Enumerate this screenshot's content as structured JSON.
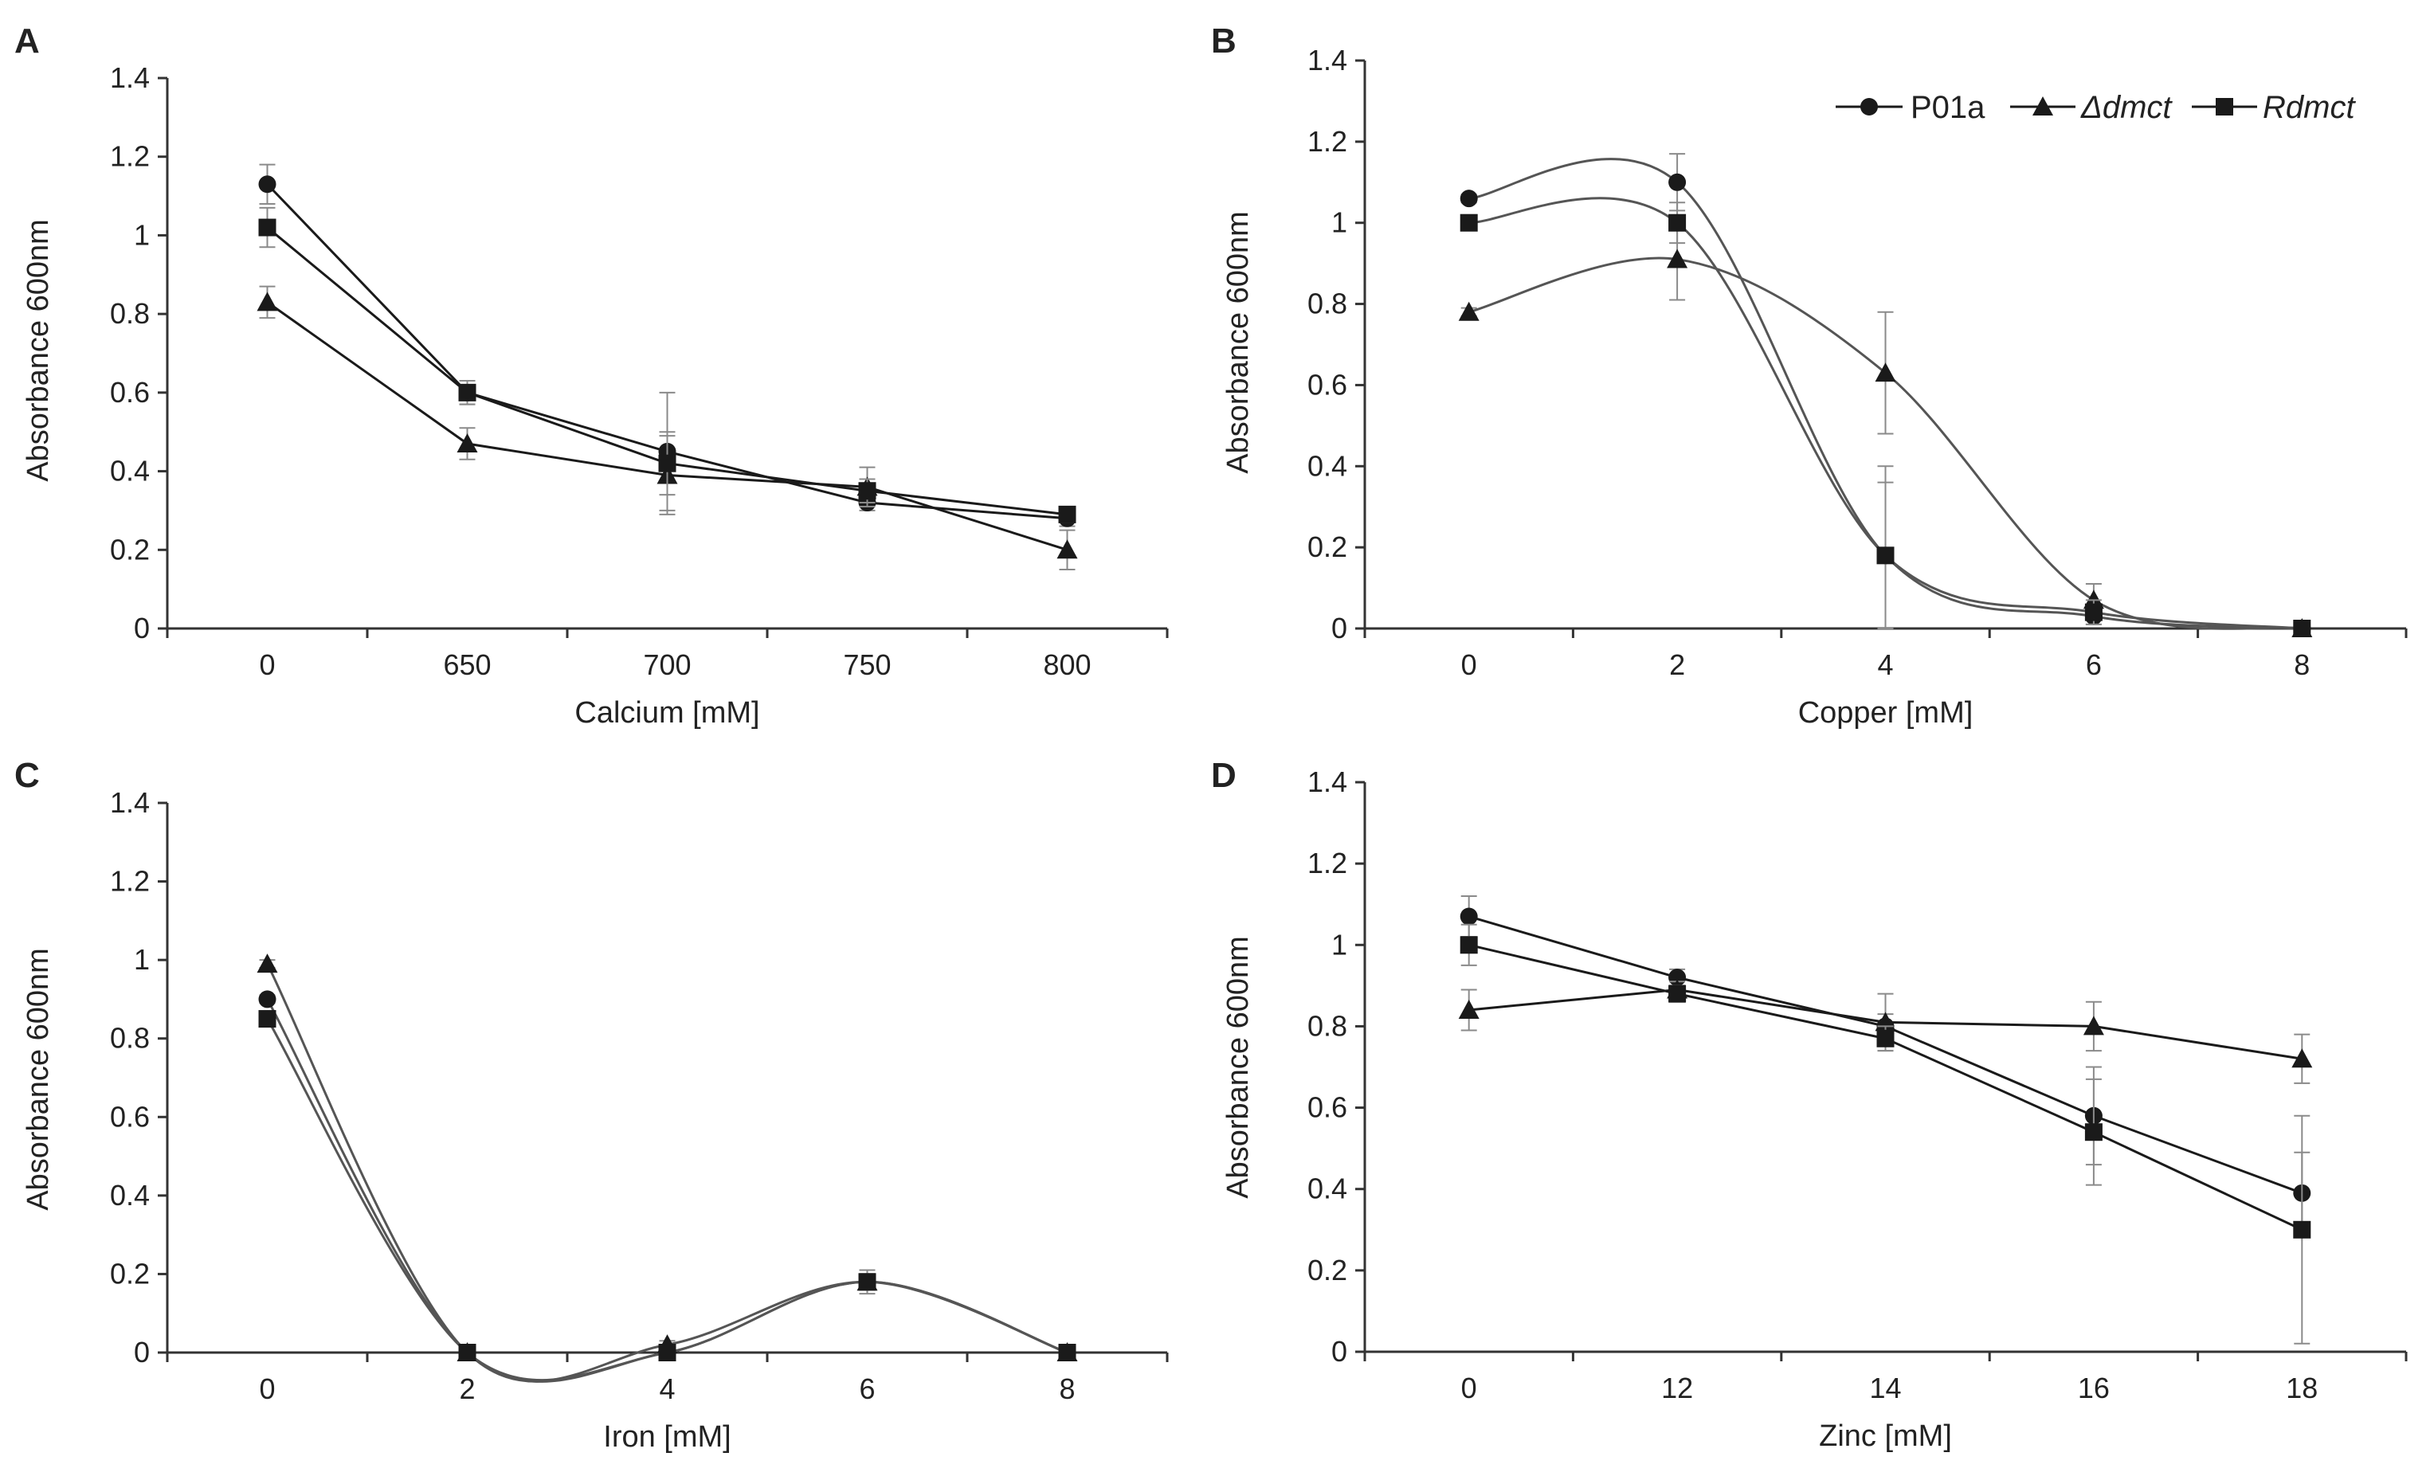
{
  "colors": {
    "line": "#1a1a1a",
    "smooth": "#555555",
    "axis": "#333333",
    "error": "#8a8a8a",
    "text": "#222222"
  },
  "legend": {
    "placement": "top-right",
    "entries": [
      {
        "label": "P01a",
        "marker": "circle",
        "italic": false
      },
      {
        "label": "Δdmct",
        "marker": "triangle",
        "italic": true
      },
      {
        "label": "Rdmct",
        "marker": "square",
        "italic": true
      }
    ]
  },
  "chart_data": [
    {
      "panel": "A",
      "type": "line",
      "smooth": false,
      "categories": [
        "0",
        "650",
        "700",
        "750",
        "800"
      ],
      "xlabel": "Calcium [mM]",
      "ylabel": "Absorbance 600nm",
      "ylim": [
        0,
        1.4
      ],
      "yticks": [
        "0",
        "0.2",
        "0.4",
        "0.6",
        "0.8",
        "1",
        "1.2",
        "1.4"
      ],
      "series": [
        {
          "name": "P01a",
          "marker": "circle",
          "values": [
            1.13,
            0.6,
            0.45,
            0.32,
            0.28
          ],
          "errors": [
            0.05,
            0.03,
            0.15,
            0.02,
            0.02
          ]
        },
        {
          "name": "Δdmct",
          "marker": "triangle",
          "values": [
            0.83,
            0.47,
            0.39,
            0.36,
            0.2
          ],
          "errors": [
            0.04,
            0.04,
            0.1,
            0.05,
            0.05
          ]
        },
        {
          "name": "Rdmct",
          "marker": "square",
          "values": [
            1.02,
            0.6,
            0.42,
            0.35,
            0.29
          ],
          "errors": [
            0.05,
            0.03,
            0.08,
            0.03,
            0.02
          ]
        }
      ]
    },
    {
      "panel": "B",
      "type": "line",
      "smooth": true,
      "categories": [
        "0",
        "2",
        "4",
        "6",
        "8"
      ],
      "xlabel": "Copper [mM]",
      "ylabel": "Absorbance 600nm",
      "ylim": [
        0,
        1.4
      ],
      "yticks": [
        "0",
        "0.2",
        "0.4",
        "0.6",
        "0.8",
        "1",
        "1.2",
        "1.4"
      ],
      "series": [
        {
          "name": "P01a",
          "marker": "circle",
          "values": [
            1.06,
            1.1,
            0.18,
            0.03,
            0.0
          ],
          "errors": [
            0.01,
            0.07,
            0.22,
            0.02,
            0.0
          ]
        },
        {
          "name": "Δdmct",
          "marker": "triangle",
          "values": [
            0.78,
            0.91,
            0.63,
            0.07,
            0.0
          ],
          "errors": [
            0.01,
            0.1,
            0.15,
            0.04,
            0.0
          ]
        },
        {
          "name": "Rdmct",
          "marker": "square",
          "values": [
            1.0,
            1.0,
            0.18,
            0.04,
            0.0
          ],
          "errors": [
            0.01,
            0.05,
            0.18,
            0.03,
            0.0
          ]
        }
      ]
    },
    {
      "panel": "C",
      "type": "line",
      "smooth": true,
      "categories": [
        "0",
        "2",
        "4",
        "6",
        "8"
      ],
      "xlabel": "Iron [mM]",
      "ylabel": "Absorbance 600nm",
      "ylim": [
        0,
        1.4
      ],
      "yticks": [
        "0",
        "0.2",
        "0.4",
        "0.6",
        "0.8",
        "1",
        "1.2",
        "1.4"
      ],
      "series": [
        {
          "name": "P01a",
          "marker": "circle",
          "values": [
            0.9,
            0.0,
            0.0,
            0.18,
            0.0
          ],
          "errors": [
            0.01,
            0.01,
            0.0,
            0.02,
            0.0
          ]
        },
        {
          "name": "Δdmct",
          "marker": "triangle",
          "values": [
            0.99,
            0.0,
            0.02,
            0.18,
            0.0
          ],
          "errors": [
            0.01,
            0.01,
            0.01,
            0.02,
            0.0
          ]
        },
        {
          "name": "Rdmct",
          "marker": "square",
          "values": [
            0.85,
            0.0,
            0.0,
            0.18,
            0.0
          ],
          "errors": [
            0.01,
            0.01,
            0.0,
            0.03,
            0.0
          ]
        }
      ]
    },
    {
      "panel": "D",
      "type": "line",
      "smooth": false,
      "categories": [
        "0",
        "12",
        "14",
        "16",
        "18"
      ],
      "xlabel": "Zinc [mM]",
      "ylabel": "Absorbance 600nm",
      "ylim": [
        0,
        1.4
      ],
      "yticks": [
        "0",
        "0.2",
        "0.4",
        "0.6",
        "0.8",
        "1",
        "1.2",
        "1.4"
      ],
      "series": [
        {
          "name": "P01a",
          "marker": "circle",
          "values": [
            1.07,
            0.92,
            0.8,
            0.58,
            0.39
          ],
          "errors": [
            0.05,
            0.02,
            0.03,
            0.12,
            0.1
          ]
        },
        {
          "name": "Δdmct",
          "marker": "triangle",
          "values": [
            0.84,
            0.89,
            0.81,
            0.8,
            0.72
          ],
          "errors": [
            0.05,
            0.02,
            0.07,
            0.06,
            0.06
          ]
        },
        {
          "name": "Rdmct",
          "marker": "square",
          "values": [
            1.0,
            0.88,
            0.77,
            0.54,
            0.3
          ],
          "errors": [
            0.05,
            0.02,
            0.03,
            0.13,
            0.28
          ]
        }
      ]
    }
  ]
}
